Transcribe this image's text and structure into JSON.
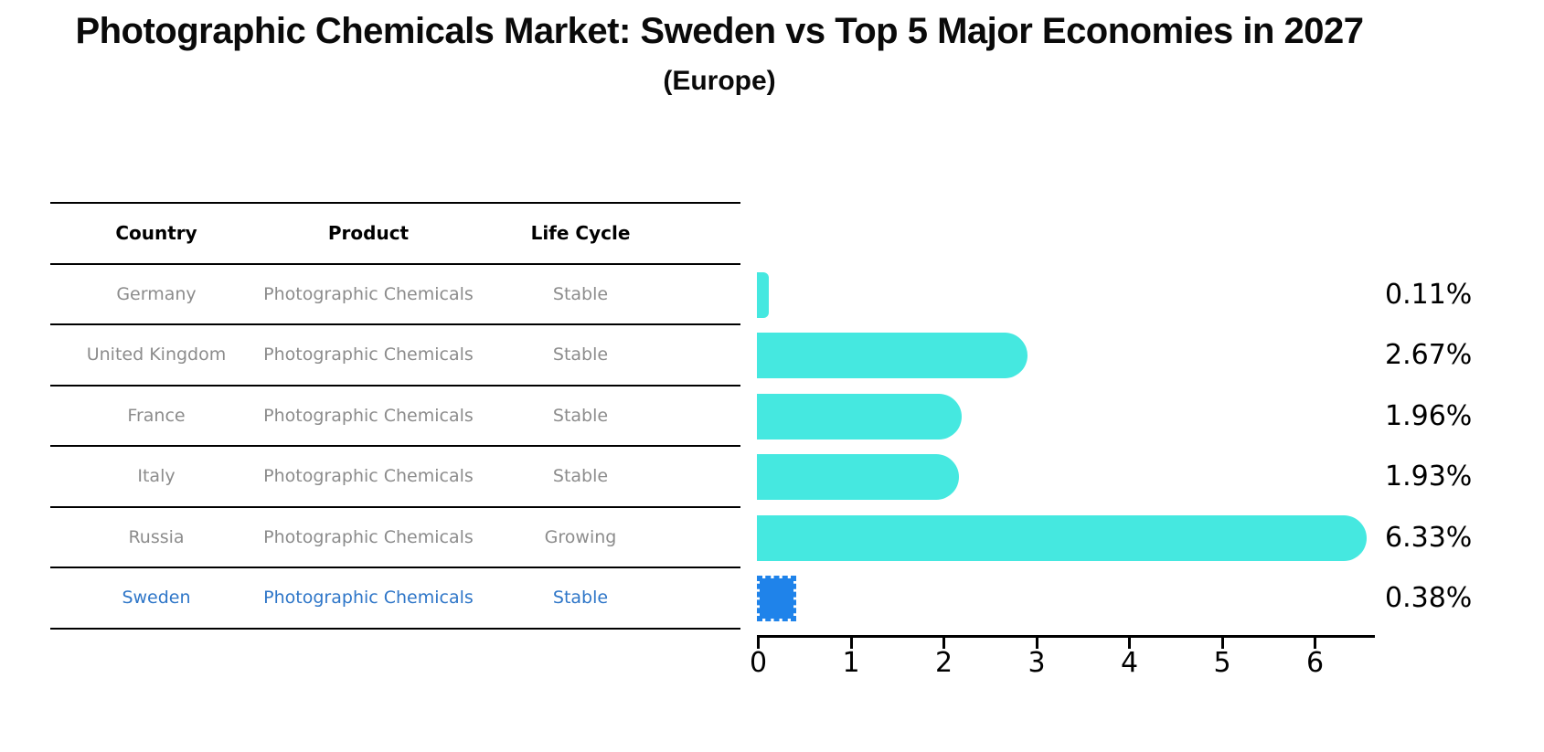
{
  "title": "Photographic Chemicals Market: Sweden vs Top 5 Major Economies in 2027",
  "subtitle": "(Europe)",
  "table": {
    "headers": [
      "Country",
      "Product",
      "Life Cycle"
    ],
    "rows": [
      {
        "country": "Germany",
        "product": "Photographic Chemicals",
        "life_cycle": "Stable",
        "value": 0.11,
        "value_label": "0.11%",
        "highlight": false
      },
      {
        "country": "United Kingdom",
        "product": "Photographic Chemicals",
        "life_cycle": "Stable",
        "value": 2.67,
        "value_label": "2.67%",
        "highlight": false
      },
      {
        "country": "France",
        "product": "Photographic Chemicals",
        "life_cycle": "Stable",
        "value": 1.96,
        "value_label": "1.96%",
        "highlight": false
      },
      {
        "country": "Italy",
        "product": "Photographic Chemicals",
        "life_cycle": "Stable",
        "value": 1.93,
        "value_label": "1.93%",
        "highlight": false
      },
      {
        "country": "Russia",
        "product": "Photographic Chemicals",
        "life_cycle": "Growing",
        "value": 6.33,
        "value_label": "6.33%",
        "highlight": false
      },
      {
        "country": "Sweden",
        "product": "Photographic Chemicals",
        "life_cycle": "Stable",
        "value": 0.38,
        "value_label": "0.38%",
        "highlight": true
      }
    ]
  },
  "chart_data": {
    "type": "bar",
    "orientation": "horizontal",
    "title": "Photographic Chemicals Market: Sweden vs Top 5 Major Economies in 2027",
    "subtitle": "(Europe)",
    "categories": [
      "Germany",
      "United Kingdom",
      "France",
      "Italy",
      "Russia",
      "Sweden"
    ],
    "values": [
      0.11,
      2.67,
      1.96,
      1.93,
      6.33,
      0.38
    ],
    "value_labels": [
      "0.11%",
      "2.67%",
      "1.96%",
      "1.93%",
      "6.33%",
      "0.38%"
    ],
    "life_cycle": [
      "Stable",
      "Stable",
      "Stable",
      "Stable",
      "Growing",
      "Stable"
    ],
    "xticks": [
      0,
      1,
      2,
      3,
      4,
      5,
      6
    ],
    "xlim": [
      0,
      6.66
    ],
    "grid": false,
    "legend": "none",
    "highlight_category": "Sweden"
  },
  "colors": {
    "bar_cyan": "#45E8E0",
    "bar_blue": "#1F83EA",
    "highlight_text": "#2E76C8",
    "table_text": "#8C8C8C",
    "axis": "#000000"
  }
}
